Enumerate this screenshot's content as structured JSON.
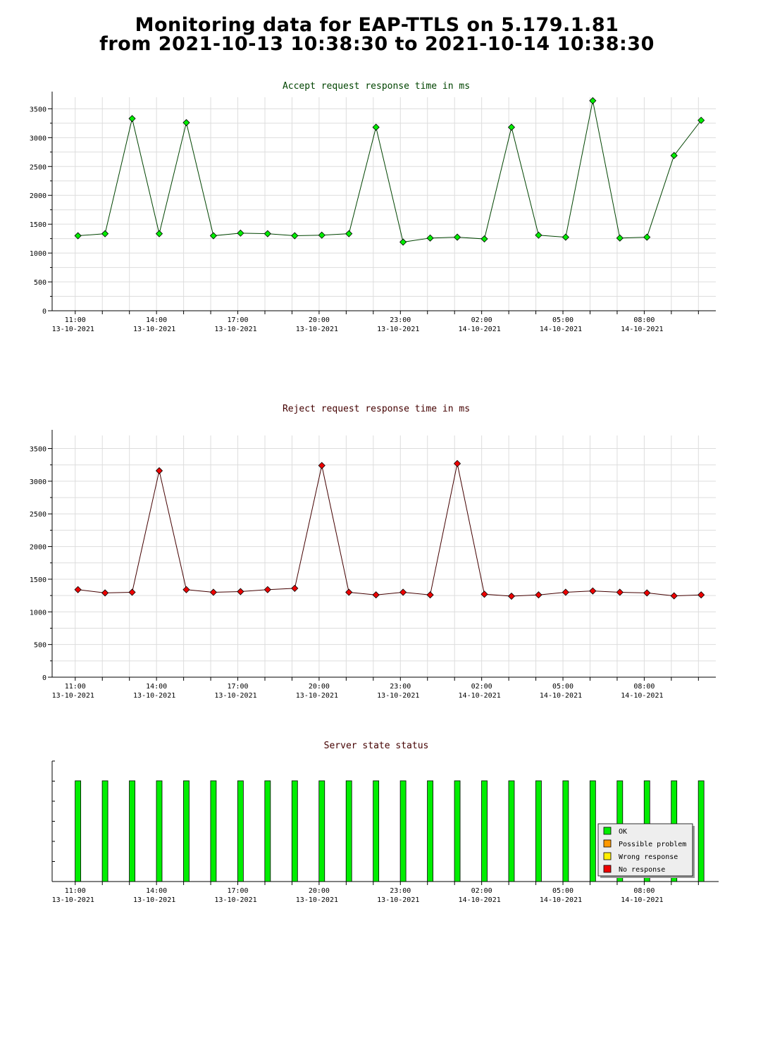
{
  "page": {
    "title_line1": "Monitoring data for EAP-TTLS on 5.179.1.81",
    "title_line2": "from 2021-10-13 10:38:30 to 2021-10-14 10:38:30"
  },
  "colors": {
    "accept_marker": "#00ee00",
    "accept_line": "#004400",
    "accept_title": "#004400",
    "reject_marker": "#ee0000",
    "reject_line": "#440000",
    "reject_title": "#440000",
    "status_title": "#440000",
    "status_ok": "#00ee00",
    "status_possible": "#ff9900",
    "status_wrong": "#ffee00",
    "status_noresp": "#ee0000",
    "grid": "#dddddd"
  },
  "chart_data": [
    {
      "type": "line",
      "title": "Accept request response time in ms",
      "xlabel": "",
      "ylabel": "",
      "x_range": [
        "2021-10-13 10:38:30",
        "2021-10-14 10:38:30"
      ],
      "ylim": [
        0,
        3700
      ],
      "yticks": [
        0,
        500,
        1000,
        1500,
        2000,
        2500,
        3000,
        3500
      ],
      "xticks": [
        {
          "time": "11:00",
          "date": "13-10-2021"
        },
        {
          "time": "14:00",
          "date": "13-10-2021"
        },
        {
          "time": "17:00",
          "date": "13-10-2021"
        },
        {
          "time": "20:00",
          "date": "13-10-2021"
        },
        {
          "time": "23:00",
          "date": "13-10-2021"
        },
        {
          "time": "02:00",
          "date": "14-10-2021"
        },
        {
          "time": "05:00",
          "date": "14-10-2021"
        },
        {
          "time": "08:00",
          "date": "14-10-2021"
        }
      ],
      "grid": true,
      "series": [
        {
          "x": [
            "2021-10-13 11:06",
            "2021-10-13 12:06",
            "2021-10-13 13:06",
            "2021-10-13 14:06",
            "2021-10-13 15:06",
            "2021-10-13 16:06",
            "2021-10-13 17:06",
            "2021-10-13 18:06",
            "2021-10-13 19:06",
            "2021-10-13 20:06",
            "2021-10-13 21:06",
            "2021-10-13 22:06",
            "2021-10-13 23:06",
            "2021-10-14 00:06",
            "2021-10-14 01:06",
            "2021-10-14 02:06",
            "2021-10-14 03:06",
            "2021-10-14 04:06",
            "2021-10-14 05:06",
            "2021-10-14 06:06",
            "2021-10-14 07:06",
            "2021-10-14 08:06",
            "2021-10-14 09:06",
            "2021-10-14 10:06"
          ],
          "values": [
            1300,
            1335,
            3330,
            1335,
            3260,
            1300,
            1345,
            1335,
            1300,
            1310,
            1335,
            3180,
            1190,
            1260,
            1275,
            1245,
            3180,
            1310,
            1275,
            3640,
            1260,
            1275,
            2690,
            3300
          ]
        }
      ]
    },
    {
      "type": "line",
      "title": "Reject request response time in ms",
      "xlabel": "",
      "ylabel": "",
      "x_range": [
        "2021-10-13 10:38:30",
        "2021-10-14 10:38:30"
      ],
      "ylim": [
        0,
        3700
      ],
      "yticks": [
        0,
        500,
        1000,
        1500,
        2000,
        2500,
        3000,
        3500
      ],
      "xticks": [
        {
          "time": "11:00",
          "date": "13-10-2021"
        },
        {
          "time": "14:00",
          "date": "13-10-2021"
        },
        {
          "time": "17:00",
          "date": "13-10-2021"
        },
        {
          "time": "20:00",
          "date": "13-10-2021"
        },
        {
          "time": "23:00",
          "date": "13-10-2021"
        },
        {
          "time": "02:00",
          "date": "14-10-2021"
        },
        {
          "time": "05:00",
          "date": "14-10-2021"
        },
        {
          "time": "08:00",
          "date": "14-10-2021"
        }
      ],
      "grid": true,
      "series": [
        {
          "x": [
            "2021-10-13 11:06",
            "2021-10-13 12:06",
            "2021-10-13 13:06",
            "2021-10-13 14:06",
            "2021-10-13 15:06",
            "2021-10-13 16:06",
            "2021-10-13 17:06",
            "2021-10-13 18:06",
            "2021-10-13 19:06",
            "2021-10-13 20:06",
            "2021-10-13 21:06",
            "2021-10-13 22:06",
            "2021-10-13 23:06",
            "2021-10-14 00:06",
            "2021-10-14 01:06",
            "2021-10-14 02:06",
            "2021-10-14 03:06",
            "2021-10-14 04:06",
            "2021-10-14 05:06",
            "2021-10-14 06:06",
            "2021-10-14 07:06",
            "2021-10-14 08:06",
            "2021-10-14 09:06",
            "2021-10-14 10:06"
          ],
          "values": [
            1340,
            1290,
            1300,
            3160,
            1340,
            1300,
            1310,
            1340,
            1360,
            3240,
            1300,
            1260,
            1300,
            1260,
            3270,
            1270,
            1240,
            1260,
            1300,
            1320,
            1300,
            1290,
            1245,
            1260
          ]
        }
      ]
    },
    {
      "type": "bar",
      "title": "Server state status",
      "x_range": [
        "2021-10-13 10:38:30",
        "2021-10-14 10:38:30"
      ],
      "xticks": [
        {
          "time": "11:00",
          "date": "13-10-2021"
        },
        {
          "time": "14:00",
          "date": "13-10-2021"
        },
        {
          "time": "17:00",
          "date": "13-10-2021"
        },
        {
          "time": "20:00",
          "date": "13-10-2021"
        },
        {
          "time": "23:00",
          "date": "13-10-2021"
        },
        {
          "time": "02:00",
          "date": "14-10-2021"
        },
        {
          "time": "05:00",
          "date": "14-10-2021"
        },
        {
          "time": "08:00",
          "date": "14-10-2021"
        }
      ],
      "x": [
        "2021-10-13 11:06",
        "2021-10-13 12:06",
        "2021-10-13 13:06",
        "2021-10-13 14:06",
        "2021-10-13 15:06",
        "2021-10-13 16:06",
        "2021-10-13 17:06",
        "2021-10-13 18:06",
        "2021-10-13 19:06",
        "2021-10-13 20:06",
        "2021-10-13 21:06",
        "2021-10-13 22:06",
        "2021-10-13 23:06",
        "2021-10-14 00:06",
        "2021-10-14 01:06",
        "2021-10-14 02:06",
        "2021-10-14 03:06",
        "2021-10-14 04:06",
        "2021-10-14 05:06",
        "2021-10-14 06:06",
        "2021-10-14 07:06",
        "2021-10-14 08:06",
        "2021-10-14 09:06",
        "2021-10-14 10:06"
      ],
      "status": [
        "OK",
        "OK",
        "OK",
        "OK",
        "OK",
        "OK",
        "OK",
        "OK",
        "OK",
        "OK",
        "OK",
        "OK",
        "OK",
        "OK",
        "OK",
        "OK",
        "OK",
        "OK",
        "OK",
        "OK",
        "OK",
        "OK",
        "OK",
        "OK"
      ],
      "legend": {
        "position": "bottom-right",
        "entries": [
          {
            "label": "OK",
            "key": "status_ok"
          },
          {
            "label": "Possible problem",
            "key": "status_possible"
          },
          {
            "label": "Wrong response",
            "key": "status_wrong"
          },
          {
            "label": "No response",
            "key": "status_noresp"
          }
        ]
      }
    }
  ]
}
